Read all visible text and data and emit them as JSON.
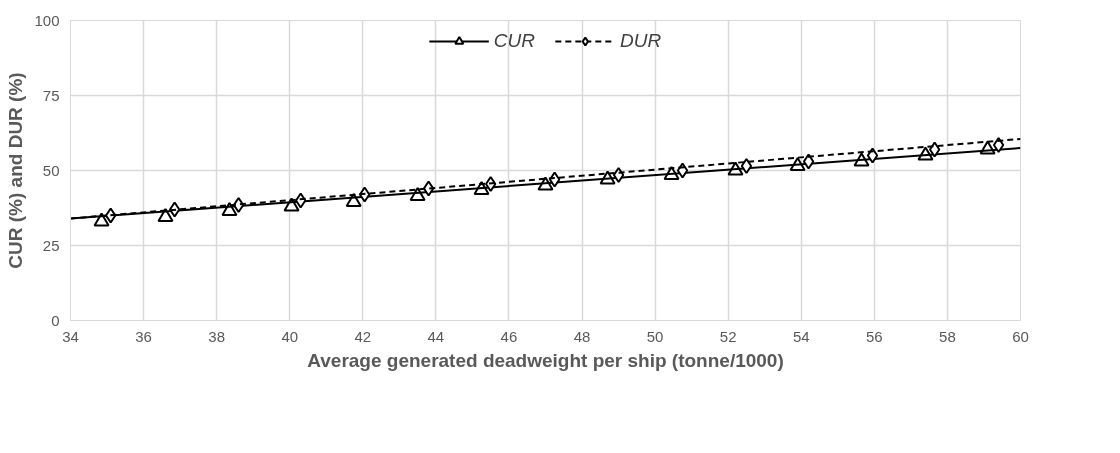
{
  "chart_data": {
    "type": "scatter",
    "xlabel": "Average generated deadweight per ship (tonne/1000)",
    "ylabel": "CUR (%) and DUR (%)",
    "xlim": [
      34,
      60
    ],
    "xticks": [
      34,
      36,
      38,
      40,
      42,
      44,
      46,
      48,
      50,
      52,
      54,
      56,
      58,
      60
    ],
    "ylim": [
      0,
      100
    ],
    "yticks": [
      0,
      25,
      50,
      75,
      100
    ],
    "grid": true,
    "legend": "top",
    "series": [
      {
        "name": "CUR",
        "marker": "triangle",
        "color": "#000000",
        "x": [
          34.85,
          36.6,
          38.35,
          40.05,
          41.75,
          43.5,
          45.25,
          47.0,
          48.7,
          50.45,
          52.2,
          53.9,
          55.65,
          57.4,
          59.1
        ],
        "values": [
          33,
          34.5,
          36.5,
          38,
          39.5,
          41.5,
          43.5,
          45,
          47,
          48.5,
          50,
          51.5,
          53,
          55,
          57
        ]
      },
      {
        "type": "line",
        "line_style": "solid",
        "color": "#000000",
        "x": [
          34,
          60
        ],
        "values": [
          34,
          57.5
        ]
      },
      {
        "name": "DUR",
        "marker": "diamond",
        "color": "#000000",
        "x": [
          35.1,
          36.85,
          38.6,
          40.3,
          42.05,
          43.8,
          45.5,
          47.25,
          49.0,
          50.75,
          52.5,
          54.2,
          55.95,
          57.65,
          59.4
        ],
        "values": [
          35,
          37,
          38.5,
          40,
          42,
          44,
          45.5,
          47,
          48.5,
          50,
          51.5,
          53,
          55,
          57,
          58.5
        ]
      },
      {
        "type": "line",
        "line_style": "dashed",
        "color": "#000000",
        "x": [
          34,
          60
        ],
        "values": [
          34,
          60.5
        ]
      }
    ]
  }
}
